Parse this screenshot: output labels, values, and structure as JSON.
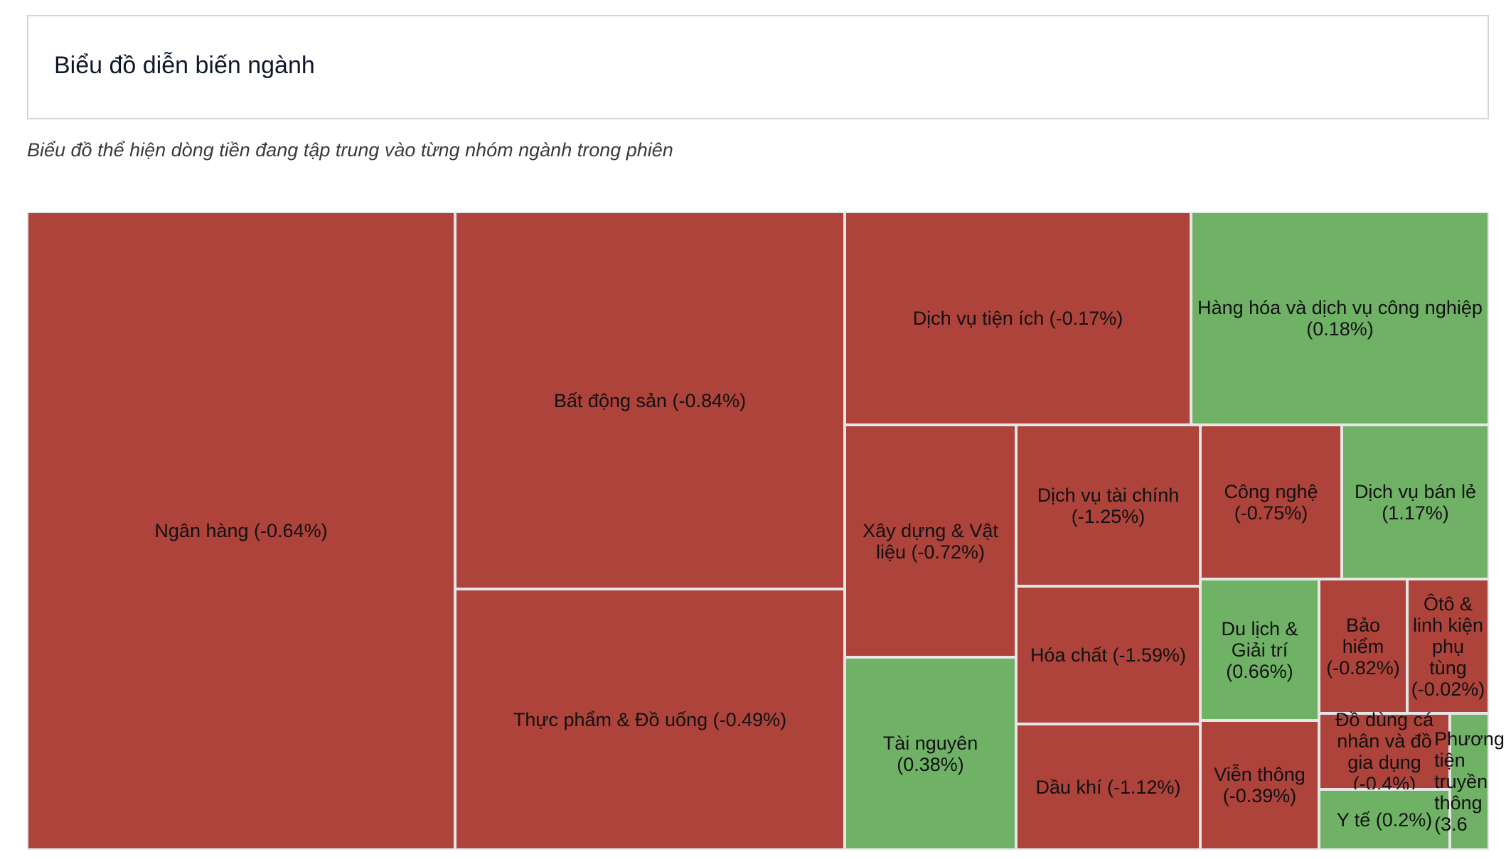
{
  "header": {
    "title": "Biểu đồ diễn biến ngành"
  },
  "subtitle": "Biểu đồ thể hiện dòng tiền đang tập trung vào từng nhóm ngành trong phiên",
  "colors": {
    "negative": "#ad433b",
    "positive": "#6fb266"
  },
  "chart_data": {
    "type": "treemap",
    "value_unit": "%",
    "items": [
      {
        "label": "Ngân hàng (-0.64%)",
        "name": "Ngân hàng",
        "change": -0.64
      },
      {
        "label": "Bất động sản (-0.84%)",
        "name": "Bất động sản",
        "change": -0.84
      },
      {
        "label": "Thực phẩm & Đồ uống (-0.49%)",
        "name": "Thực phẩm & Đồ uống",
        "change": -0.49
      },
      {
        "label": "Dịch vụ tiện ích (-0.17%)",
        "name": "Dịch vụ tiện ích",
        "change": -0.17
      },
      {
        "label": "Hàng hóa và dịch vụ công nghiệp (0.18%)",
        "name": "Hàng hóa và dịch vụ công nghiệp",
        "change": 0.18
      },
      {
        "label": "Xây dựng & Vật liệu (-0.72%)",
        "name": "Xây dựng & Vật liệu",
        "change": -0.72
      },
      {
        "label": "Tài nguyên (0.38%)",
        "name": "Tài nguyên",
        "change": 0.38
      },
      {
        "label": "Dịch vụ tài chính (-1.25%)",
        "name": "Dịch vụ tài chính",
        "change": -1.25
      },
      {
        "label": "Hóa chất (-1.59%)",
        "name": "Hóa chất",
        "change": -1.59
      },
      {
        "label": "Dầu khí (-1.12%)",
        "name": "Dầu khí",
        "change": -1.12
      },
      {
        "label": "Công nghệ (-0.75%)",
        "name": "Công nghệ",
        "change": -0.75
      },
      {
        "label": "Dịch vụ bán lẻ (1.17%)",
        "name": "Dịch vụ bán lẻ",
        "change": 1.17
      },
      {
        "label": "Du lịch & Giải trí (0.66%)",
        "name": "Du lịch & Giải trí",
        "change": 0.66
      },
      {
        "label": "Viễn thông (-0.39%)",
        "name": "Viễn thông",
        "change": -0.39
      },
      {
        "label": "Bảo hiểm (-0.82%)",
        "name": "Bảo hiểm",
        "change": -0.82
      },
      {
        "label": "Ôtô & linh kiện phụ tùng (-0.02%)",
        "name": "Ôtô & linh kiện phụ tùng",
        "change": -0.02
      },
      {
        "label": "Đồ dùng cá nhân và đồ gia dụng (-0.4%)",
        "name": "Đồ dùng cá nhân và đồ gia dụng",
        "change": -0.4
      },
      {
        "label": "Y tế (0.2%)",
        "name": "Y tế",
        "change": 0.2
      },
      {
        "label": "Phương tiện truyền thông (3.6",
        "name": "Phương tiện truyền thông",
        "change": 3.6
      }
    ]
  }
}
